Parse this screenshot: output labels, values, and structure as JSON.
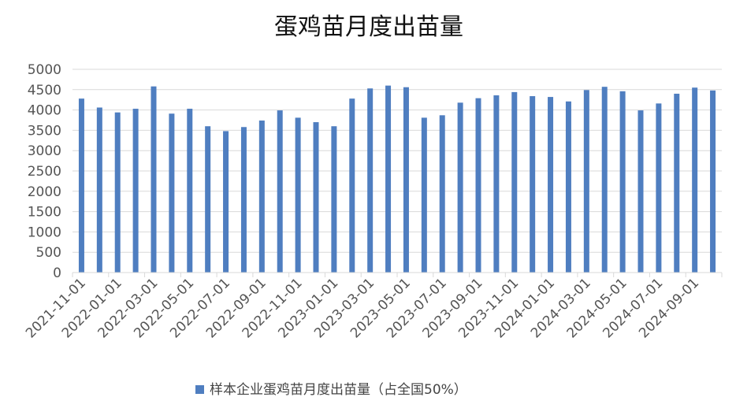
{
  "chart_data": {
    "type": "bar",
    "title": "蛋鸡苗月度出苗量",
    "xlabel": "",
    "ylabel": "",
    "ylim": [
      0,
      5000
    ],
    "yticks": [
      0,
      500,
      1000,
      1500,
      2000,
      2500,
      3000,
      3500,
      4000,
      4500,
      5000
    ],
    "grid": true,
    "legend_position": "bottom",
    "categories": [
      "2021-11-01",
      "2021-12-01",
      "2022-01-01",
      "2022-02-01",
      "2022-03-01",
      "2022-04-01",
      "2022-05-01",
      "2022-06-01",
      "2022-07-01",
      "2022-08-01",
      "2022-09-01",
      "2022-10-01",
      "2022-11-01",
      "2022-12-01",
      "2023-01-01",
      "2023-02-01",
      "2023-03-01",
      "2023-04-01",
      "2023-05-01",
      "2023-06-01",
      "2023-07-01",
      "2023-08-01",
      "2023-09-01",
      "2023-10-01",
      "2023-11-01",
      "2023-12-01",
      "2024-01-01",
      "2024-02-01",
      "2024-03-01",
      "2024-04-01",
      "2024-05-01",
      "2024-06-01",
      "2024-07-01",
      "2024-08-01",
      "2024-09-01",
      "2024-10-01"
    ],
    "xtick_labels": [
      "2021-11-01",
      "2022-01-01",
      "2022-03-01",
      "2022-05-01",
      "2022-07-01",
      "2022-09-01",
      "2022-11-01",
      "2023-01-01",
      "2023-03-01",
      "2023-05-01",
      "2023-07-01",
      "2023-09-01",
      "2023-11-01",
      "2024-01-01",
      "2024-03-01",
      "2024-05-01",
      "2024-07-01",
      "2024-09-01"
    ],
    "series": [
      {
        "name": "样本企业蛋鸡苗月度出苗量（占全国50%）",
        "color": "#4F7EC0",
        "values": [
          4280,
          4060,
          3940,
          4030,
          4580,
          3910,
          4030,
          3600,
          3480,
          3580,
          3740,
          3990,
          3810,
          3700,
          3600,
          4280,
          4530,
          4600,
          4560,
          3810,
          3870,
          4180,
          4290,
          4360,
          4440,
          4340,
          4320,
          4210,
          4490,
          4570,
          4460,
          3990,
          4160,
          4400,
          4550,
          4480
        ]
      }
    ]
  }
}
